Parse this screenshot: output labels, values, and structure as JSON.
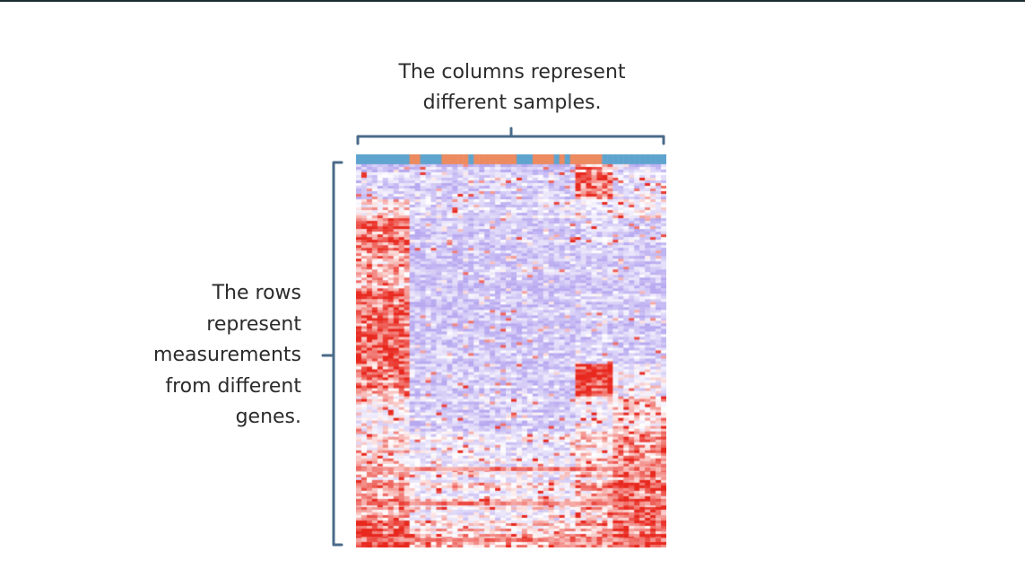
{
  "captions": {
    "columns_line1": "The columns represent",
    "columns_line2": "different samples.",
    "rows_line1": "The rows",
    "rows_line2": "represent",
    "rows_line3": "measurements",
    "rows_line4": "from different",
    "rows_line5": "genes."
  },
  "colors": {
    "bracket": "#4a6b8a",
    "heat_low": "#b7a8f0",
    "heat_mid": "#ffffff",
    "heat_high": "#e8281e",
    "header_blue": "#5ea4cf",
    "header_orange": "#ec8a60",
    "text": "#2b2b2b"
  }
}
